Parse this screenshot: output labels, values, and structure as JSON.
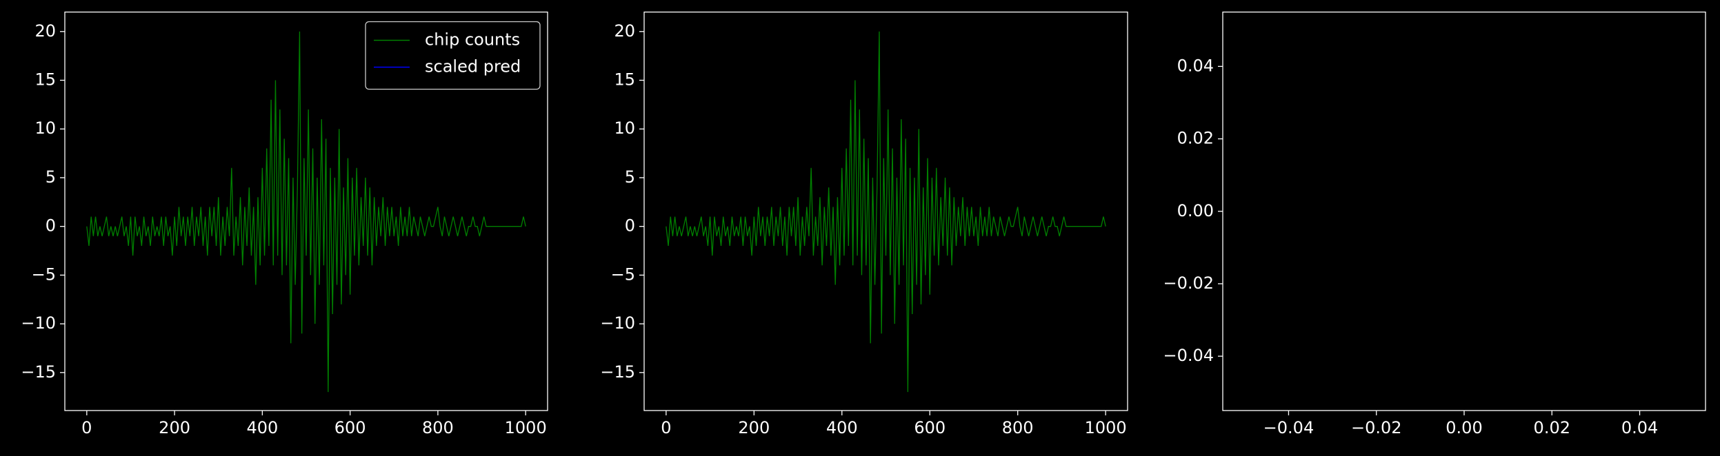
{
  "chart_data": [
    {
      "type": "line",
      "legend": "upper right",
      "xlim": [
        -50,
        1050
      ],
      "xticks": [
        0,
        200,
        400,
        600,
        800,
        1000
      ],
      "ylim": [
        -18.9,
        22.0
      ],
      "yticks": [
        {
          "value": -15,
          "label": "−15"
        },
        {
          "value": -10,
          "label": "−10"
        },
        {
          "value": -5,
          "label": "−5"
        },
        0,
        5,
        10,
        15,
        20
      ],
      "series": [
        {
          "name": "chip counts",
          "color": "#008000",
          "x": [
            0,
            5,
            10,
            15,
            20,
            25,
            30,
            35,
            40,
            45,
            50,
            55,
            60,
            65,
            70,
            75,
            80,
            85,
            90,
            95,
            100,
            105,
            110,
            115,
            120,
            125,
            130,
            135,
            140,
            145,
            150,
            155,
            160,
            165,
            170,
            175,
            180,
            185,
            190,
            195,
            200,
            205,
            210,
            215,
            220,
            225,
            230,
            235,
            240,
            245,
            250,
            255,
            260,
            265,
            270,
            275,
            280,
            285,
            290,
            295,
            300,
            305,
            310,
            315,
            320,
            325,
            330,
            335,
            340,
            345,
            350,
            355,
            360,
            365,
            370,
            375,
            380,
            385,
            390,
            395,
            400,
            405,
            410,
            415,
            420,
            425,
            430,
            435,
            440,
            445,
            450,
            455,
            460,
            465,
            470,
            475,
            480,
            485,
            490,
            495,
            500,
            505,
            510,
            515,
            520,
            525,
            530,
            535,
            540,
            545,
            550,
            555,
            560,
            565,
            570,
            575,
            580,
            585,
            590,
            595,
            600,
            605,
            610,
            615,
            620,
            625,
            630,
            635,
            640,
            645,
            650,
            655,
            660,
            665,
            670,
            675,
            680,
            685,
            690,
            695,
            700,
            705,
            710,
            715,
            720,
            725,
            730,
            735,
            740,
            745,
            750,
            755,
            760,
            765,
            770,
            775,
            780,
            785,
            790,
            795,
            800,
            805,
            810,
            815,
            820,
            825,
            830,
            835,
            840,
            845,
            850,
            855,
            860,
            865,
            870,
            875,
            880,
            885,
            890,
            895,
            900,
            905,
            910,
            915,
            920,
            925,
            930,
            935,
            940,
            945,
            950,
            955,
            960,
            965,
            970,
            975,
            980,
            985,
            990,
            995,
            1000
          ],
          "values": [
            0,
            -2,
            1,
            -1,
            1,
            -1,
            0,
            -1,
            0,
            1,
            -1,
            0,
            -1,
            0,
            -1,
            0,
            1,
            -1,
            0,
            -2,
            1,
            -3,
            1,
            -1,
            0,
            -2,
            1,
            -1,
            0,
            -2,
            1,
            -1,
            0,
            -1,
            1,
            -2,
            1,
            -1,
            0,
            -3,
            1,
            -2,
            2,
            -1,
            1,
            -2,
            1,
            -1,
            2,
            -2,
            1,
            -1,
            2,
            -2,
            1,
            -3,
            2,
            -1,
            2,
            -2,
            3,
            -3,
            1,
            -2,
            2,
            -1,
            6,
            -3,
            1,
            -2,
            3,
            -4,
            2,
            -2,
            4,
            -3,
            2,
            -6,
            3,
            -4,
            6,
            -3,
            8,
            -2,
            13,
            -4,
            15,
            -3,
            12,
            -5,
            9,
            -4,
            7,
            -12,
            5,
            -6,
            4,
            20,
            -11,
            7,
            -3,
            12,
            -5,
            8,
            -10,
            5,
            -6,
            11,
            -4,
            9,
            -17,
            6,
            -9,
            5,
            -6,
            10,
            -8,
            4,
            -5,
            7,
            -7,
            5,
            -3,
            6,
            -4,
            3,
            -2,
            5,
            -3,
            4,
            -4,
            3,
            -2,
            2,
            -1,
            3,
            -2,
            2,
            -1,
            2,
            -1,
            1,
            -2,
            2,
            -1,
            1,
            -1,
            2,
            -1,
            1,
            0,
            -1,
            1,
            0,
            -1,
            0,
            1,
            0,
            0,
            1,
            2,
            0,
            -1,
            1,
            0,
            -1,
            0,
            1,
            0,
            -1,
            0,
            1,
            0,
            -1,
            0,
            0,
            1,
            0,
            0,
            -1,
            0,
            1,
            0,
            0,
            0,
            0,
            0,
            0,
            0,
            0,
            0,
            0,
            0,
            0,
            0,
            0,
            0,
            0,
            0,
            1,
            0
          ]
        },
        {
          "name": "scaled pred",
          "color": "#0000ff",
          "x": [],
          "values": []
        }
      ]
    },
    {
      "type": "line",
      "xlim": [
        -50,
        1050
      ],
      "xticks": [
        0,
        200,
        400,
        600,
        800,
        1000
      ],
      "ylim": [
        -18.9,
        22.0
      ],
      "yticks": [
        {
          "value": -15,
          "label": "−15"
        },
        {
          "value": -10,
          "label": "−10"
        },
        {
          "value": -5,
          "label": "−5"
        },
        0,
        5,
        10,
        15,
        20
      ],
      "series": [
        {
          "color": "#008000",
          "x": [
            0,
            5,
            10,
            15,
            20,
            25,
            30,
            35,
            40,
            45,
            50,
            55,
            60,
            65,
            70,
            75,
            80,
            85,
            90,
            95,
            100,
            105,
            110,
            115,
            120,
            125,
            130,
            135,
            140,
            145,
            150,
            155,
            160,
            165,
            170,
            175,
            180,
            185,
            190,
            195,
            200,
            205,
            210,
            215,
            220,
            225,
            230,
            235,
            240,
            245,
            250,
            255,
            260,
            265,
            270,
            275,
            280,
            285,
            290,
            295,
            300,
            305,
            310,
            315,
            320,
            325,
            330,
            335,
            340,
            345,
            350,
            355,
            360,
            365,
            370,
            375,
            380,
            385,
            390,
            395,
            400,
            405,
            410,
            415,
            420,
            425,
            430,
            435,
            440,
            445,
            450,
            455,
            460,
            465,
            470,
            475,
            480,
            485,
            490,
            495,
            500,
            505,
            510,
            515,
            520,
            525,
            530,
            535,
            540,
            545,
            550,
            555,
            560,
            565,
            570,
            575,
            580,
            585,
            590,
            595,
            600,
            605,
            610,
            615,
            620,
            625,
            630,
            635,
            640,
            645,
            650,
            655,
            660,
            665,
            670,
            675,
            680,
            685,
            690,
            695,
            700,
            705,
            710,
            715,
            720,
            725,
            730,
            735,
            740,
            745,
            750,
            755,
            760,
            765,
            770,
            775,
            780,
            785,
            790,
            795,
            800,
            805,
            810,
            815,
            820,
            825,
            830,
            835,
            840,
            845,
            850,
            855,
            860,
            865,
            870,
            875,
            880,
            885,
            890,
            895,
            900,
            905,
            910,
            915,
            920,
            925,
            930,
            935,
            940,
            945,
            950,
            955,
            960,
            965,
            970,
            975,
            980,
            985,
            990,
            995,
            1000
          ],
          "values": [
            0,
            -2,
            1,
            -1,
            1,
            -1,
            0,
            -1,
            0,
            1,
            -1,
            0,
            -1,
            0,
            -1,
            0,
            1,
            -1,
            0,
            -2,
            1,
            -3,
            1,
            -1,
            0,
            -2,
            1,
            -1,
            0,
            -2,
            1,
            -1,
            0,
            -1,
            1,
            -2,
            1,
            -1,
            0,
            -3,
            1,
            -2,
            2,
            -1,
            1,
            -2,
            1,
            -1,
            2,
            -2,
            1,
            -1,
            2,
            -2,
            1,
            -3,
            2,
            -1,
            2,
            -2,
            3,
            -3,
            1,
            -2,
            2,
            -1,
            6,
            -3,
            1,
            -2,
            3,
            -4,
            2,
            -2,
            4,
            -3,
            2,
            -6,
            3,
            -4,
            6,
            -3,
            8,
            -2,
            13,
            -4,
            15,
            -3,
            12,
            -5,
            9,
            -4,
            7,
            -12,
            5,
            -6,
            4,
            20,
            -11,
            7,
            -3,
            12,
            -5,
            8,
            -10,
            5,
            -6,
            11,
            -4,
            9,
            -17,
            6,
            -9,
            5,
            -6,
            10,
            -8,
            4,
            -5,
            7,
            -7,
            5,
            -3,
            6,
            -4,
            3,
            -2,
            5,
            -3,
            4,
            -4,
            3,
            -2,
            2,
            -1,
            3,
            -2,
            2,
            -1,
            2,
            -1,
            1,
            -2,
            2,
            -1,
            1,
            -1,
            2,
            -1,
            1,
            0,
            -1,
            1,
            0,
            -1,
            0,
            1,
            0,
            0,
            1,
            2,
            0,
            -1,
            1,
            0,
            -1,
            0,
            1,
            0,
            -1,
            0,
            1,
            0,
            -1,
            0,
            0,
            1,
            0,
            0,
            -1,
            0,
            1,
            0,
            0,
            0,
            0,
            0,
            0,
            0,
            0,
            0,
            0,
            0,
            0,
            0,
            0,
            0,
            0,
            0,
            1,
            0
          ]
        }
      ]
    },
    {
      "type": "line",
      "xlim": [
        -0.055,
        0.055
      ],
      "xticks": [
        {
          "value": -0.04,
          "label": "−0.04"
        },
        {
          "value": -0.02,
          "label": "−0.02"
        },
        {
          "value": 0,
          "label": "0.00"
        },
        {
          "value": 0.02,
          "label": "0.02"
        },
        {
          "value": 0.04,
          "label": "0.04"
        }
      ],
      "ylim": [
        -0.055,
        0.055
      ],
      "yticks": [
        {
          "value": -0.04,
          "label": "−0.04"
        },
        {
          "value": -0.02,
          "label": "−0.02"
        },
        {
          "value": 0,
          "label": "0.00"
        },
        {
          "value": 0.02,
          "label": "0.02"
        },
        {
          "value": 0.04,
          "label": "0.04"
        }
      ],
      "series": []
    }
  ]
}
